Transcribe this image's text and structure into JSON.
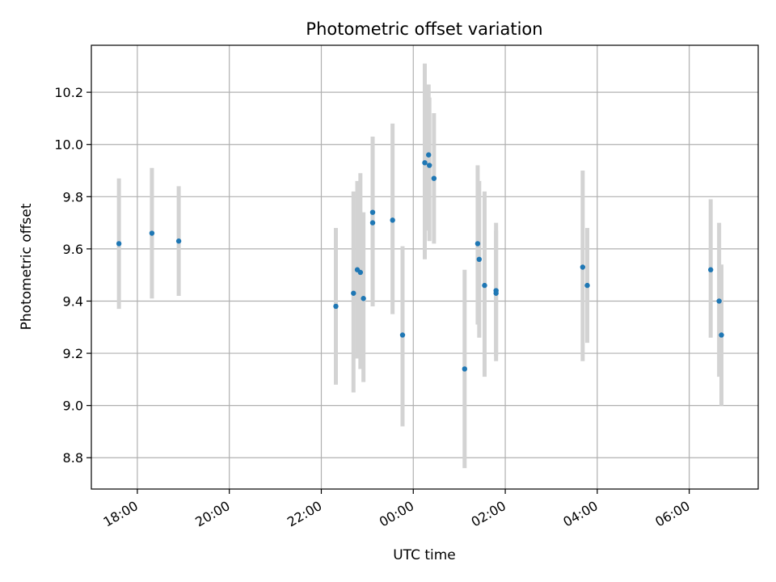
{
  "chart_data": {
    "type": "scatter",
    "title": "Photometric offset variation",
    "xlabel": "UTC time",
    "ylabel": "Photometric offset",
    "x_ticks": [
      "18:00",
      "20:00",
      "22:00",
      "00:00",
      "02:00",
      "04:00",
      "06:00"
    ],
    "y_ticks": [
      "8.8",
      "9.0",
      "9.2",
      "9.4",
      "9.6",
      "9.8",
      "10.0",
      "10.2"
    ],
    "xlim": [
      "17:00",
      "07:30"
    ],
    "ylim": [
      8.68,
      10.38
    ],
    "grid": true,
    "colors": {
      "point": "#1f77b4",
      "errorbar": "#d3d3d3",
      "grid": "#b0b0b0"
    },
    "points": [
      {
        "x": "17:36",
        "y": 9.62,
        "low": 9.37,
        "high": 9.87
      },
      {
        "x": "18:19",
        "y": 9.66,
        "low": 9.41,
        "high": 9.91
      },
      {
        "x": "18:54",
        "y": 9.63,
        "low": 9.42,
        "high": 9.84
      },
      {
        "x": "22:19",
        "y": 9.38,
        "low": 9.08,
        "high": 9.68
      },
      {
        "x": "22:42",
        "y": 9.43,
        "low": 9.05,
        "high": 9.82
      },
      {
        "x": "22:47",
        "y": 9.52,
        "low": 9.18,
        "high": 9.86
      },
      {
        "x": "22:51",
        "y": 9.51,
        "low": 9.14,
        "high": 9.89
      },
      {
        "x": "22:55",
        "y": 9.41,
        "low": 9.09,
        "high": 9.74
      },
      {
        "x": "23:07",
        "y": 9.74,
        "low": 9.45,
        "high": 10.03
      },
      {
        "x": "23:07",
        "y": 9.7,
        "low": 9.38,
        "high": 10.0
      },
      {
        "x": "23:33",
        "y": 9.71,
        "low": 9.35,
        "high": 10.08
      },
      {
        "x": "23:46",
        "y": 9.27,
        "low": 8.92,
        "high": 9.61
      },
      {
        "x": "00:15",
        "y": 9.93,
        "low": 9.56,
        "high": 10.31
      },
      {
        "x": "00:20",
        "y": 9.96,
        "low": 9.67,
        "high": 10.23
      },
      {
        "x": "00:21",
        "y": 9.92,
        "low": 9.63,
        "high": 10.18
      },
      {
        "x": "00:27",
        "y": 9.87,
        "low": 9.62,
        "high": 10.12
      },
      {
        "x": "01:07",
        "y": 9.14,
        "low": 8.76,
        "high": 9.52
      },
      {
        "x": "01:24",
        "y": 9.62,
        "low": 9.31,
        "high": 9.92
      },
      {
        "x": "01:26",
        "y": 9.56,
        "low": 9.26,
        "high": 9.86
      },
      {
        "x": "01:33",
        "y": 9.46,
        "low": 9.11,
        "high": 9.82
      },
      {
        "x": "01:48",
        "y": 9.44,
        "low": 9.17,
        "high": 9.7
      },
      {
        "x": "01:48",
        "y": 9.43,
        "low": 9.19,
        "high": 9.67
      },
      {
        "x": "03:41",
        "y": 9.53,
        "low": 9.17,
        "high": 9.9
      },
      {
        "x": "03:47",
        "y": 9.46,
        "low": 9.24,
        "high": 9.68
      },
      {
        "x": "06:28",
        "y": 9.52,
        "low": 9.26,
        "high": 9.79
      },
      {
        "x": "06:39",
        "y": 9.4,
        "low": 9.11,
        "high": 9.7
      },
      {
        "x": "06:42",
        "y": 9.27,
        "low": 9.0,
        "high": 9.54
      }
    ]
  }
}
